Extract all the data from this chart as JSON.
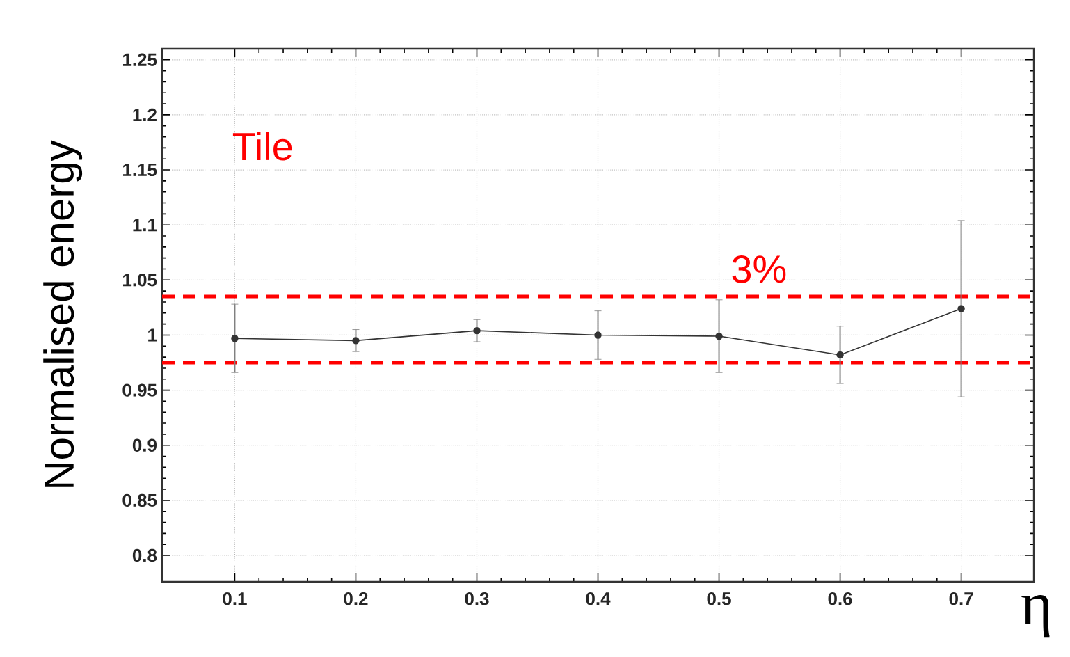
{
  "chart_data": {
    "type": "line",
    "xlabel": "η",
    "ylabel": "Normalised energy",
    "x": [
      0.1,
      0.2,
      0.3,
      0.4,
      0.5,
      0.6,
      0.7
    ],
    "series": [
      {
        "color": "#333333",
        "values": [
          0.997,
          0.995,
          1.004,
          1.0,
          0.999,
          0.982,
          1.024
        ],
        "errors": [
          0.031,
          0.01,
          0.01,
          0.022,
          0.033,
          0.026,
          0.08
        ]
      }
    ],
    "xlim": [
      0.04,
      0.76
    ],
    "ylim": [
      0.776,
      1.26
    ],
    "xticks": [
      0.1,
      0.2,
      0.3,
      0.4,
      0.5,
      0.6,
      0.7
    ],
    "yticks": [
      0.8,
      0.85,
      0.9,
      0.95,
      1,
      1.05,
      1.1,
      1.15,
      1.2,
      1.25
    ],
    "ref_lines": [
      {
        "axis": "y",
        "value": 1.035,
        "color": "#ff0000",
        "line_style": "dashed"
      },
      {
        "axis": "y",
        "value": 0.975,
        "color": "#ff0000",
        "line_style": "dashed"
      }
    ],
    "annotations": [
      "Tile",
      "3%"
    ],
    "grid": true,
    "marker": "circle",
    "line_style": "solid"
  }
}
